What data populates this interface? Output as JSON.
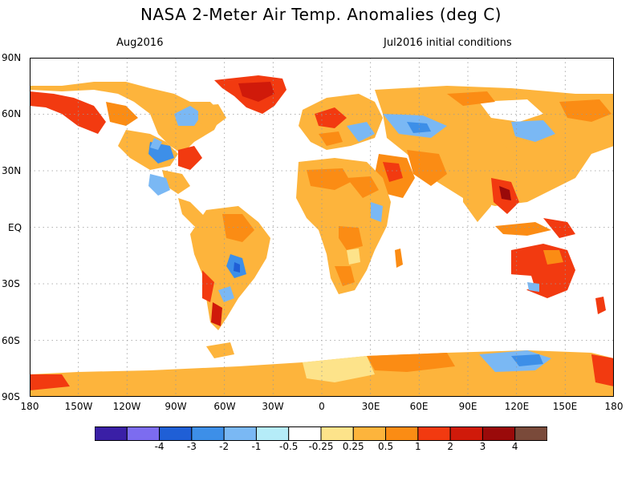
{
  "title": "NASA 2-Meter Air Temp. Anomalies (deg C)",
  "subtitle_left": "Aug2016",
  "subtitle_right": "Jul2016 initial conditions",
  "lat_labels": [
    "90N",
    "60N",
    "30N",
    "EQ",
    "30S",
    "60S",
    "90S"
  ],
  "lon_labels": [
    "180",
    "150W",
    "120W",
    "90W",
    "60W",
    "30W",
    "0",
    "30E",
    "60E",
    "90E",
    "120E",
    "150E",
    "180"
  ],
  "legend": {
    "colors": [
      "#3a1fa6",
      "#7c6cf0",
      "#1f5fd6",
      "#3d8fe8",
      "#7ab8f4",
      "#b5ecf8",
      "#ffffff",
      "#fde38a",
      "#fdb43c",
      "#fb8c14",
      "#f23a10",
      "#d01a0a",
      "#9a0a0a",
      "#7a4a3a"
    ],
    "labels": [
      "-4",
      "-3",
      "-2",
      "-1",
      "-0.5",
      "-0.25",
      "0.25",
      "0.5",
      "1",
      "2",
      "3",
      "4"
    ]
  }
}
